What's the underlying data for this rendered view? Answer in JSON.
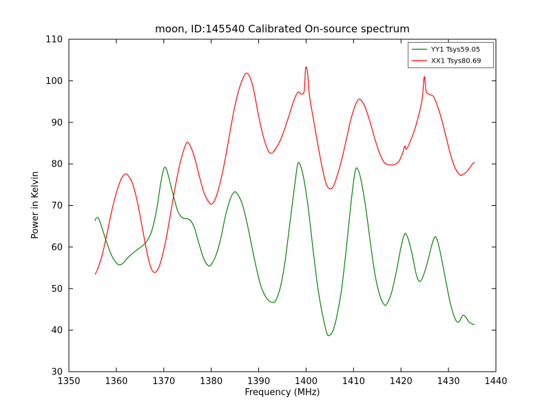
{
  "chart_data": {
    "type": "line",
    "title": "moon, ID:145540 Calibrated On-source spectrum",
    "xlabel": "Frequency (MHz)",
    "ylabel": "Power in Kelvin",
    "xlim": [
      1350,
      1440
    ],
    "ylim": [
      30,
      110
    ],
    "xticks": [
      1350,
      1360,
      1370,
      1380,
      1390,
      1400,
      1410,
      1420,
      1430,
      1440
    ],
    "yticks": [
      30,
      40,
      50,
      60,
      70,
      80,
      90,
      100,
      110
    ],
    "grid": false,
    "legend_position": "upper right",
    "series": [
      {
        "name": "YY1 Tsys59.05",
        "color": "#008000",
        "points": [
          [
            1355.5,
            66.3
          ],
          [
            1355.8,
            67.0
          ],
          [
            1356.3,
            66.8
          ],
          [
            1357,
            64.5
          ],
          [
            1358,
            61
          ],
          [
            1359,
            58
          ],
          [
            1360,
            56.2
          ],
          [
            1360.7,
            55.7
          ],
          [
            1361.5,
            56.2
          ],
          [
            1362.5,
            57.5
          ],
          [
            1364,
            59
          ],
          [
            1365.5,
            60.3
          ],
          [
            1366.5,
            61.5
          ],
          [
            1367.5,
            64
          ],
          [
            1368.5,
            69
          ],
          [
            1369.3,
            75
          ],
          [
            1370,
            78.8
          ],
          [
            1370.5,
            78.9
          ],
          [
            1371,
            77
          ],
          [
            1372,
            72.5
          ],
          [
            1373,
            68.5
          ],
          [
            1374,
            67
          ],
          [
            1375,
            66.8
          ],
          [
            1375.7,
            66.3
          ],
          [
            1376.5,
            64.5
          ],
          [
            1377.5,
            60.5
          ],
          [
            1378.5,
            57
          ],
          [
            1379.4,
            55.5
          ],
          [
            1380,
            55.8
          ],
          [
            1381,
            58
          ],
          [
            1382,
            62
          ],
          [
            1383,
            67.5
          ],
          [
            1384,
            71.5
          ],
          [
            1384.8,
            73.2
          ],
          [
            1385.5,
            72.8
          ],
          [
            1386.5,
            70.5
          ],
          [
            1387.5,
            66
          ],
          [
            1388.5,
            60.5
          ],
          [
            1389.5,
            55
          ],
          [
            1390.5,
            50.5
          ],
          [
            1391.5,
            48
          ],
          [
            1392.5,
            46.8
          ],
          [
            1393.5,
            47
          ],
          [
            1394.5,
            50
          ],
          [
            1395.5,
            56
          ],
          [
            1396.5,
            65
          ],
          [
            1397.5,
            74
          ],
          [
            1398.2,
            79.8
          ],
          [
            1398.7,
            79.9
          ],
          [
            1399.5,
            76.5
          ],
          [
            1400.5,
            69
          ],
          [
            1401.5,
            59
          ],
          [
            1402.5,
            50
          ],
          [
            1403.5,
            43.5
          ],
          [
            1404.4,
            39.2
          ],
          [
            1405,
            38.8
          ],
          [
            1405.7,
            40
          ],
          [
            1406.5,
            43.5
          ],
          [
            1407.5,
            50
          ],
          [
            1408.5,
            60
          ],
          [
            1409.5,
            71
          ],
          [
            1410.3,
            78
          ],
          [
            1410.8,
            78.9
          ],
          [
            1411.5,
            76.5
          ],
          [
            1412.5,
            70
          ],
          [
            1413.5,
            61.5
          ],
          [
            1414.5,
            53.5
          ],
          [
            1415.5,
            48.5
          ],
          [
            1416.4,
            46.2
          ],
          [
            1417,
            46.3
          ],
          [
            1418,
            49
          ],
          [
            1419,
            54
          ],
          [
            1420,
            60
          ],
          [
            1420.8,
            63.2
          ],
          [
            1421.5,
            62
          ],
          [
            1422.3,
            58.5
          ],
          [
            1423.2,
            53.5
          ],
          [
            1423.8,
            51.8
          ],
          [
            1424.5,
            52.5
          ],
          [
            1425.5,
            56
          ],
          [
            1426.5,
            60.5
          ],
          [
            1427.2,
            62.5
          ],
          [
            1427.8,
            61
          ],
          [
            1428.5,
            57.5
          ],
          [
            1429.5,
            51.5
          ],
          [
            1430.5,
            46
          ],
          [
            1431.5,
            42.5
          ],
          [
            1432.2,
            42
          ],
          [
            1433,
            43.5
          ],
          [
            1433.6,
            43.2
          ],
          [
            1434.3,
            42
          ],
          [
            1435,
            41.5
          ],
          [
            1435.5,
            41.3
          ]
        ]
      },
      {
        "name": "XX1 Tsys80.69",
        "color": "#ff0000",
        "points": [
          [
            1355.5,
            53.4
          ],
          [
            1356,
            54.5
          ],
          [
            1357,
            58
          ],
          [
            1358,
            63
          ],
          [
            1359,
            68.5
          ],
          [
            1360,
            73
          ],
          [
            1361,
            76.3
          ],
          [
            1361.8,
            77.5
          ],
          [
            1362.5,
            77.2
          ],
          [
            1363.5,
            75
          ],
          [
            1364.5,
            70.5
          ],
          [
            1365.5,
            64.5
          ],
          [
            1366.5,
            58.5
          ],
          [
            1367.3,
            55
          ],
          [
            1368,
            53.9
          ],
          [
            1368.7,
            54.5
          ],
          [
            1369.5,
            57
          ],
          [
            1370.5,
            62
          ],
          [
            1371.5,
            68.5
          ],
          [
            1372.5,
            75
          ],
          [
            1373.5,
            80.5
          ],
          [
            1374.5,
            84.3
          ],
          [
            1375,
            85.2
          ],
          [
            1375.6,
            84.3
          ],
          [
            1376.5,
            81.5
          ],
          [
            1377.5,
            77
          ],
          [
            1378.5,
            73
          ],
          [
            1379.5,
            70.8
          ],
          [
            1380.2,
            70.4
          ],
          [
            1381,
            72
          ],
          [
            1382,
            76
          ],
          [
            1383,
            81.5
          ],
          [
            1384,
            88
          ],
          [
            1385,
            94
          ],
          [
            1386,
            98.5
          ],
          [
            1387,
            101.3
          ],
          [
            1387.6,
            101.8
          ],
          [
            1388.3,
            100.5
          ],
          [
            1389,
            97.5
          ],
          [
            1390,
            91.5
          ],
          [
            1391,
            86.5
          ],
          [
            1392,
            83.2
          ],
          [
            1392.7,
            82.6
          ],
          [
            1393.5,
            83.5
          ],
          [
            1394.5,
            85.5
          ],
          [
            1395.5,
            88.5
          ],
          [
            1396.5,
            92
          ],
          [
            1397.5,
            95.5
          ],
          [
            1398.3,
            97.3
          ],
          [
            1399,
            96.8
          ],
          [
            1399.6,
            97.6
          ],
          [
            1399.9,
            103.1
          ],
          [
            1400.3,
            102
          ],
          [
            1400.7,
            96.5
          ],
          [
            1401.5,
            91
          ],
          [
            1402.5,
            84.5
          ],
          [
            1403.5,
            78.5
          ],
          [
            1404.3,
            75
          ],
          [
            1405,
            74
          ],
          [
            1405.7,
            74.5
          ],
          [
            1406.5,
            77
          ],
          [
            1407.5,
            81
          ],
          [
            1408.5,
            86
          ],
          [
            1409.5,
            91
          ],
          [
            1410.5,
            94.5
          ],
          [
            1411.2,
            95.6
          ],
          [
            1411.8,
            95
          ],
          [
            1412.5,
            93.5
          ],
          [
            1413.5,
            90
          ],
          [
            1414.5,
            86
          ],
          [
            1415.5,
            82.5
          ],
          [
            1416.5,
            80.3
          ],
          [
            1417.5,
            79.8
          ],
          [
            1418.5,
            79.8
          ],
          [
            1419.5,
            80.5
          ],
          [
            1420.3,
            82.5
          ],
          [
            1420.8,
            84.3
          ],
          [
            1421.1,
            83.5
          ],
          [
            1421.8,
            85
          ],
          [
            1422.8,
            88
          ],
          [
            1423.8,
            92
          ],
          [
            1424.5,
            96
          ],
          [
            1424.9,
            101
          ],
          [
            1425.3,
            97.5
          ],
          [
            1426,
            96.7
          ],
          [
            1426.8,
            96.3
          ],
          [
            1427.5,
            94.5
          ],
          [
            1428.5,
            91
          ],
          [
            1429.5,
            86.5
          ],
          [
            1430.5,
            82
          ],
          [
            1431.5,
            78.8
          ],
          [
            1432.5,
            77.3
          ],
          [
            1433.3,
            77.6
          ],
          [
            1434.2,
            78.6
          ],
          [
            1435,
            79.9
          ],
          [
            1435.5,
            80.4
          ]
        ]
      }
    ]
  }
}
